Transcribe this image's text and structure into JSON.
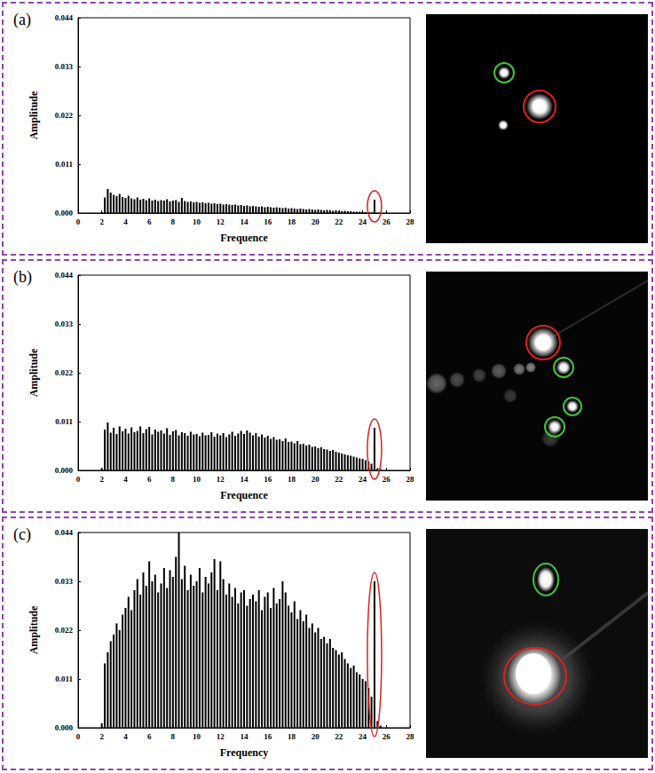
{
  "chart_data": [
    {
      "type": "bar",
      "title": "(a)",
      "x_label": "Frequence",
      "y_label": "Amplitude",
      "color": "#000000",
      "grid": false,
      "xlim": [
        0,
        28
      ],
      "xticks": [
        0,
        2,
        4,
        6,
        8,
        10,
        12,
        14,
        16,
        18,
        20,
        22,
        24,
        26,
        28
      ],
      "ylim": [
        0,
        0.044
      ],
      "yticks": [
        {
          "value": 0,
          "label": "0.000"
        },
        0.011,
        0.022,
        0.033,
        0.044
      ],
      "x": [
        2,
        2.25,
        2.5,
        2.75,
        3,
        3.25,
        3.5,
        3.75,
        4,
        4.25,
        4.5,
        4.75,
        5,
        5.25,
        5.5,
        5.75,
        6,
        6.25,
        6.5,
        6.75,
        7,
        7.25,
        7.5,
        7.75,
        8,
        8.25,
        8.5,
        8.75,
        9,
        9.25,
        9.5,
        9.75,
        10,
        10.25,
        10.5,
        10.75,
        11,
        11.25,
        11.5,
        11.75,
        12,
        12.25,
        12.5,
        12.75,
        13,
        13.25,
        13.5,
        13.75,
        14,
        14.25,
        14.5,
        14.75,
        15,
        15.25,
        15.5,
        15.75,
        16,
        16.25,
        16.5,
        16.75,
        17,
        17.25,
        17.5,
        17.75,
        18,
        18.25,
        18.5,
        18.75,
        19,
        19.25,
        19.5,
        19.75,
        20,
        20.25,
        20.5,
        20.75,
        21,
        21.25,
        21.5,
        21.75,
        22,
        22.25,
        22.5,
        22.75,
        23,
        23.25,
        23.5,
        23.75,
        24,
        24.25,
        24.5,
        24.75,
        25,
        25.25,
        25.5
      ],
      "values": [
        0.0002,
        0.0035,
        0.0054,
        0.0046,
        0.0041,
        0.0038,
        0.0043,
        0.0036,
        0.0034,
        0.0039,
        0.0033,
        0.0031,
        0.0035,
        0.003,
        0.0032,
        0.0029,
        0.0033,
        0.0028,
        0.003,
        0.0027,
        0.0029,
        0.0028,
        0.0031,
        0.0026,
        0.0028,
        0.0029,
        0.0025,
        0.0034,
        0.0027,
        0.0025,
        0.0026,
        0.0024,
        0.0025,
        0.0023,
        0.0024,
        0.0022,
        0.0023,
        0.0021,
        0.0022,
        0.002,
        0.0021,
        0.0019,
        0.002,
        0.0019,
        0.0018,
        0.0019,
        0.0017,
        0.0018,
        0.0016,
        0.0017,
        0.0015,
        0.0016,
        0.0015,
        0.0014,
        0.0015,
        0.0013,
        0.0014,
        0.0013,
        0.0012,
        0.0013,
        0.0012,
        0.0011,
        0.0012,
        0.001,
        0.0011,
        0.001,
        0.0009,
        0.001,
        0.0009,
        0.0008,
        0.0009,
        0.0008,
        0.0007,
        0.0008,
        0.0007,
        0.0006,
        0.0007,
        0.0006,
        0.0005,
        0.0006,
        0.0005,
        0.0004,
        0.0005,
        0.0004,
        0.0004,
        0.0003,
        0.0003,
        0.0003,
        0.0002,
        0.0002,
        0.0002,
        0.0001,
        0.003,
        0.0001,
        0.0001
      ]
    },
    {
      "type": "bar",
      "title": "(b)",
      "x_label": "Frequence",
      "y_label": "Amplitude",
      "color": "#000000",
      "grid": false,
      "xlim": [
        0,
        28
      ],
      "xticks": [
        0,
        2,
        4,
        6,
        8,
        10,
        12,
        14,
        16,
        18,
        20,
        22,
        24,
        26,
        28
      ],
      "ylim": [
        0,
        0.044
      ],
      "yticks": [
        {
          "value": 0,
          "label": "0.000"
        },
        0.011,
        0.022,
        0.033,
        0.044
      ],
      "x": [
        2,
        2.25,
        2.5,
        2.75,
        3,
        3.25,
        3.5,
        3.75,
        4,
        4.25,
        4.5,
        4.75,
        5,
        5.25,
        5.5,
        5.75,
        6,
        6.25,
        6.5,
        6.75,
        7,
        7.25,
        7.5,
        7.75,
        8,
        8.25,
        8.5,
        8.75,
        9,
        9.25,
        9.5,
        9.75,
        10,
        10.25,
        10.5,
        10.75,
        11,
        11.25,
        11.5,
        11.75,
        12,
        12.25,
        12.5,
        12.75,
        13,
        13.25,
        13.5,
        13.75,
        14,
        14.25,
        14.5,
        14.75,
        15,
        15.25,
        15.5,
        15.75,
        16,
        16.25,
        16.5,
        16.75,
        17,
        17.25,
        17.5,
        17.75,
        18,
        18.25,
        18.5,
        18.75,
        19,
        19.25,
        19.5,
        19.75,
        20,
        20.25,
        20.5,
        20.75,
        21,
        21.25,
        21.5,
        21.75,
        22,
        22.25,
        22.5,
        22.75,
        23,
        23.25,
        23.5,
        23.75,
        24,
        24.25,
        24.5,
        24.75,
        25,
        25.25,
        25.5
      ],
      "values": [
        0.0005,
        0.0092,
        0.0108,
        0.0085,
        0.0096,
        0.0082,
        0.0099,
        0.0088,
        0.0094,
        0.0083,
        0.0097,
        0.0086,
        0.0089,
        0.0099,
        0.0084,
        0.0093,
        0.0098,
        0.0081,
        0.0092,
        0.0087,
        0.009,
        0.0083,
        0.0095,
        0.008,
        0.0088,
        0.0091,
        0.0079,
        0.0086,
        0.0084,
        0.0078,
        0.0087,
        0.0081,
        0.0082,
        0.0077,
        0.0085,
        0.0079,
        0.008,
        0.0086,
        0.0076,
        0.0083,
        0.0079,
        0.0084,
        0.0075,
        0.0081,
        0.0087,
        0.0078,
        0.0083,
        0.0089,
        0.0082,
        0.009,
        0.0085,
        0.0079,
        0.0084,
        0.0076,
        0.0081,
        0.0074,
        0.0078,
        0.0071,
        0.0075,
        0.0069,
        0.007,
        0.0066,
        0.0072,
        0.0064,
        0.0065,
        0.0061,
        0.0066,
        0.0059,
        0.006,
        0.0056,
        0.0058,
        0.0053,
        0.0054,
        0.005,
        0.0052,
        0.0048,
        0.0047,
        0.0044,
        0.0046,
        0.0042,
        0.004,
        0.0038,
        0.0036,
        0.0034,
        0.0033,
        0.0031,
        0.0029,
        0.0027,
        0.0026,
        0.0023,
        0.002,
        0.0015,
        0.0096,
        0.0005,
        0.0003
      ]
    },
    {
      "type": "bar",
      "title": "(c)",
      "x_label": "Frequency",
      "y_label": "Amplitude",
      "color": "#000000",
      "grid": false,
      "xlim": [
        0,
        28
      ],
      "xticks": [
        0,
        2,
        4,
        6,
        8,
        10,
        12,
        14,
        16,
        18,
        20,
        22,
        24,
        26,
        28
      ],
      "ylim": [
        0,
        0.044
      ],
      "yticks": [
        {
          "value": 0,
          "label": "0.000"
        },
        0.011,
        0.022,
        0.033,
        0.044
      ],
      "x": [
        2,
        2.25,
        2.5,
        2.75,
        3,
        3.25,
        3.5,
        3.75,
        4,
        4.25,
        4.5,
        4.75,
        5,
        5.25,
        5.5,
        5.75,
        6,
        6.25,
        6.5,
        6.75,
        7,
        7.25,
        7.5,
        7.75,
        8,
        8.25,
        8.5,
        8.75,
        9,
        9.25,
        9.5,
        9.75,
        10,
        10.25,
        10.5,
        10.75,
        11,
        11.25,
        11.5,
        11.75,
        12,
        12.25,
        12.5,
        12.75,
        13,
        13.25,
        13.5,
        13.75,
        14,
        14.25,
        14.5,
        14.75,
        15,
        15.25,
        15.5,
        15.75,
        16,
        16.25,
        16.5,
        16.75,
        17,
        17.25,
        17.5,
        17.75,
        18,
        18.25,
        18.5,
        18.75,
        19,
        19.25,
        19.5,
        19.75,
        20,
        20.25,
        20.5,
        20.75,
        21,
        21.25,
        21.5,
        21.75,
        22,
        22.25,
        22.5,
        22.75,
        23,
        23.25,
        23.5,
        23.75,
        24,
        24.25,
        24.5,
        24.75,
        25,
        25.25,
        25.5
      ],
      "values": [
        0.001,
        0.0145,
        0.017,
        0.0195,
        0.021,
        0.0235,
        0.022,
        0.0255,
        0.027,
        0.0295,
        0.0265,
        0.031,
        0.0335,
        0.03,
        0.035,
        0.032,
        0.0375,
        0.033,
        0.0345,
        0.0305,
        0.0325,
        0.036,
        0.0315,
        0.0355,
        0.034,
        0.0385,
        0.044,
        0.0335,
        0.0365,
        0.031,
        0.0345,
        0.032,
        0.033,
        0.036,
        0.0305,
        0.034,
        0.0325,
        0.035,
        0.038,
        0.031,
        0.0375,
        0.0335,
        0.03,
        0.0325,
        0.0295,
        0.0315,
        0.028,
        0.0305,
        0.031,
        0.0275,
        0.029,
        0.03,
        0.0285,
        0.031,
        0.0265,
        0.0295,
        0.0305,
        0.027,
        0.0315,
        0.028,
        0.029,
        0.033,
        0.0305,
        0.0275,
        0.026,
        0.0285,
        0.0245,
        0.0265,
        0.024,
        0.0255,
        0.0225,
        0.0235,
        0.0215,
        0.0225,
        0.02,
        0.0205,
        0.019,
        0.02,
        0.018,
        0.0175,
        0.0165,
        0.017,
        0.0155,
        0.0145,
        0.0135,
        0.014,
        0.0125,
        0.012,
        0.011,
        0.0105,
        0.009,
        0.007,
        0.033,
        0.0015,
        0.0005
      ]
    }
  ]
}
